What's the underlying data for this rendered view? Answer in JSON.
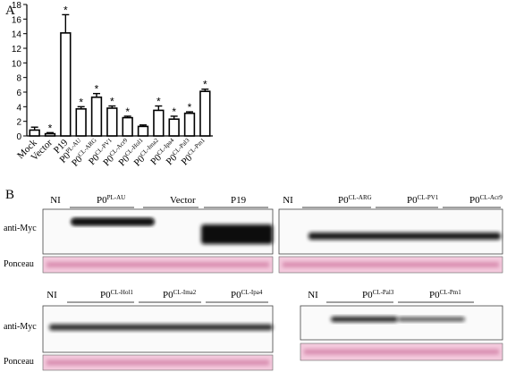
{
  "panel_labels": [
    "A",
    "B"
  ],
  "chart_data": {
    "type": "bar",
    "categories": [
      [
        "Mock"
      ],
      [
        "Vector"
      ],
      [
        "P19"
      ],
      [
        "P0",
        "PL-AU"
      ],
      [
        "P0",
        "CL-ARG"
      ],
      [
        "P0",
        "CL-PV1"
      ],
      [
        "P0",
        "CL-Acr9"
      ],
      [
        "P0",
        "CL-Hol1"
      ],
      [
        "P0",
        "CL-Ima2"
      ],
      [
        "P0",
        "CL-Ipa4"
      ],
      [
        "P0",
        "CL-Pal3"
      ],
      [
        "P0",
        "CL-Pm1"
      ]
    ],
    "values": [
      0.8,
      0.3,
      14.1,
      3.7,
      5.3,
      3.8,
      2.5,
      1.3,
      3.5,
      2.3,
      3.1,
      6.1
    ],
    "errors": [
      0.4,
      0.15,
      2.5,
      0.3,
      0.5,
      0.3,
      0.2,
      0.2,
      0.6,
      0.4,
      0.2,
      0.3
    ],
    "significance": [
      null,
      "*",
      "*",
      "*",
      "*",
      "*",
      "*",
      null,
      "*",
      "*",
      "*",
      "*"
    ],
    "color": "#ffffff",
    "ylim": [
      0,
      18
    ],
    "yticks": [
      0,
      2,
      4,
      6,
      8,
      10,
      12,
      14,
      16,
      18
    ],
    "grid": false
  },
  "blots": [
    {
      "lanes": [
        [
          "NI"
        ],
        [
          "P0",
          "PL-AU"
        ],
        [
          "Vector"
        ],
        [
          "P19"
        ]
      ],
      "rows": [
        "anti-Myc",
        "Ponceau"
      ]
    },
    {
      "lanes": [
        [
          "NI"
        ],
        [
          "P0",
          "CL-ARG"
        ],
        [
          "P0",
          "CL-PV1"
        ],
        [
          "P0",
          "CL-Acr9"
        ]
      ]
    },
    {
      "lanes": [
        [
          "NI"
        ],
        [
          "P0",
          "CL-Hol1"
        ],
        [
          "P0",
          "CL-Ima2"
        ],
        [
          "P0",
          "CL-Ipa4"
        ]
      ],
      "rows": [
        "anti-Myc",
        "Ponceau"
      ]
    },
    {
      "lanes": [
        [
          "NI"
        ],
        [
          "P0",
          "CL-Pal3"
        ],
        [
          "P0",
          "CL-Pm1"
        ]
      ]
    }
  ]
}
